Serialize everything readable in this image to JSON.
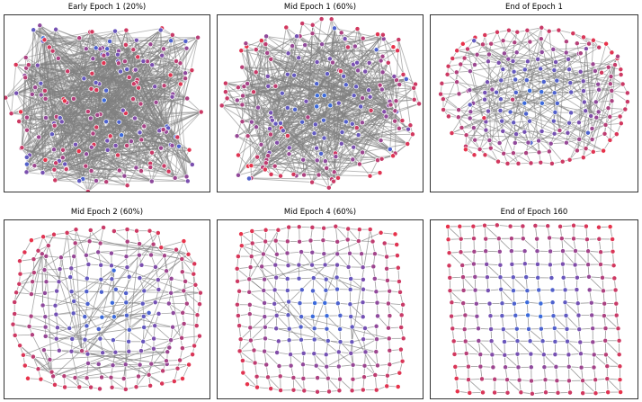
{
  "panels": [
    {
      "title": "Early Epoch 1 (20%)"
    },
    {
      "title": "Mid Epoch 1 (60%)"
    },
    {
      "title": "End of Epoch 1"
    },
    {
      "title": "Mid Epoch 2 (60%)"
    },
    {
      "title": "Mid Epoch 4 (60%)"
    },
    {
      "title": "End of Epoch 160"
    }
  ],
  "colors": {
    "edge": "#808080",
    "node_center": "#2f6fe3",
    "node_mid": "#7a4fb0",
    "node_edge": "#e8324a",
    "node_outline": "#ffffff"
  }
}
